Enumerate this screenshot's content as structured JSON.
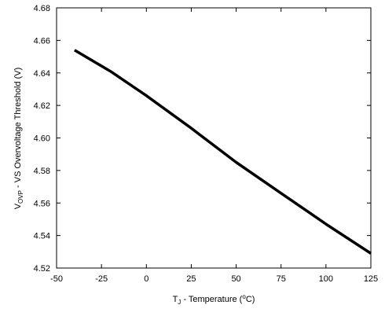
{
  "chart_data": {
    "type": "line",
    "title": "",
    "xlabel": {
      "main": "T",
      "sub": "J",
      "rest": " - Temperature  (",
      "unit_sup": "o",
      "unit_rest": "C)"
    },
    "ylabel": {
      "main": "V",
      "sub": "OVP",
      "rest": " - VS Overvoltage Threshold  (V)"
    },
    "xlim": [
      -50,
      125
    ],
    "ylim": [
      4.52,
      4.68
    ],
    "x_ticks": [
      "-50",
      "-25",
      "0",
      "25",
      "50",
      "75",
      "100",
      "125"
    ],
    "y_ticks": [
      "4.52",
      "4.54",
      "4.56",
      "4.58",
      "4.60",
      "4.62",
      "4.64",
      "4.66",
      "4.68"
    ],
    "grid": false,
    "series": [
      {
        "x": [
          -40,
          -20,
          0,
          25,
          50,
          75,
          100,
          125
        ],
        "y": [
          4.654,
          4.641,
          4.626,
          4.606,
          4.585,
          4.566,
          4.547,
          4.529
        ]
      }
    ]
  }
}
